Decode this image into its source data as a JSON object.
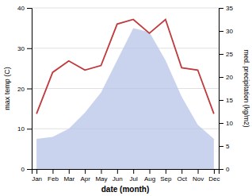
{
  "chart_data": {
    "type": "line",
    "categories": [
      "Jan",
      "Feb",
      "Mar",
      "Apr",
      "May",
      "Jun",
      "Jul",
      "Aug",
      "Sep",
      "Oct",
      "Nov",
      "Dec"
    ],
    "series": [
      {
        "type": "area",
        "color": "#b8c4e8",
        "values": [
          7.5,
          8.0,
          10.0,
          14.0,
          19.0,
          27.0,
          35.0,
          34.0,
          27.0,
          18.0,
          11.0,
          7.5
        ]
      },
      {
        "type": "line",
        "color": "#c0393b",
        "axis": "y2",
        "values": [
          12.0,
          21.0,
          23.5,
          21.5,
          22.5,
          31.5,
          32.5,
          29.5,
          32.5,
          22.0,
          21.5,
          12.0
        ]
      }
    ],
    "xlabel": "date (month)",
    "ylabel": "max temp (C)",
    "y2label": "med. precipitation (kg/m2)",
    "ylim": [
      0,
      40
    ],
    "yticks": [
      0,
      10,
      20,
      30,
      40
    ],
    "y2lim": [
      0,
      35
    ],
    "y2ticks": [
      0,
      5,
      10,
      15,
      20,
      25,
      30,
      35
    ],
    "grid": true
  }
}
